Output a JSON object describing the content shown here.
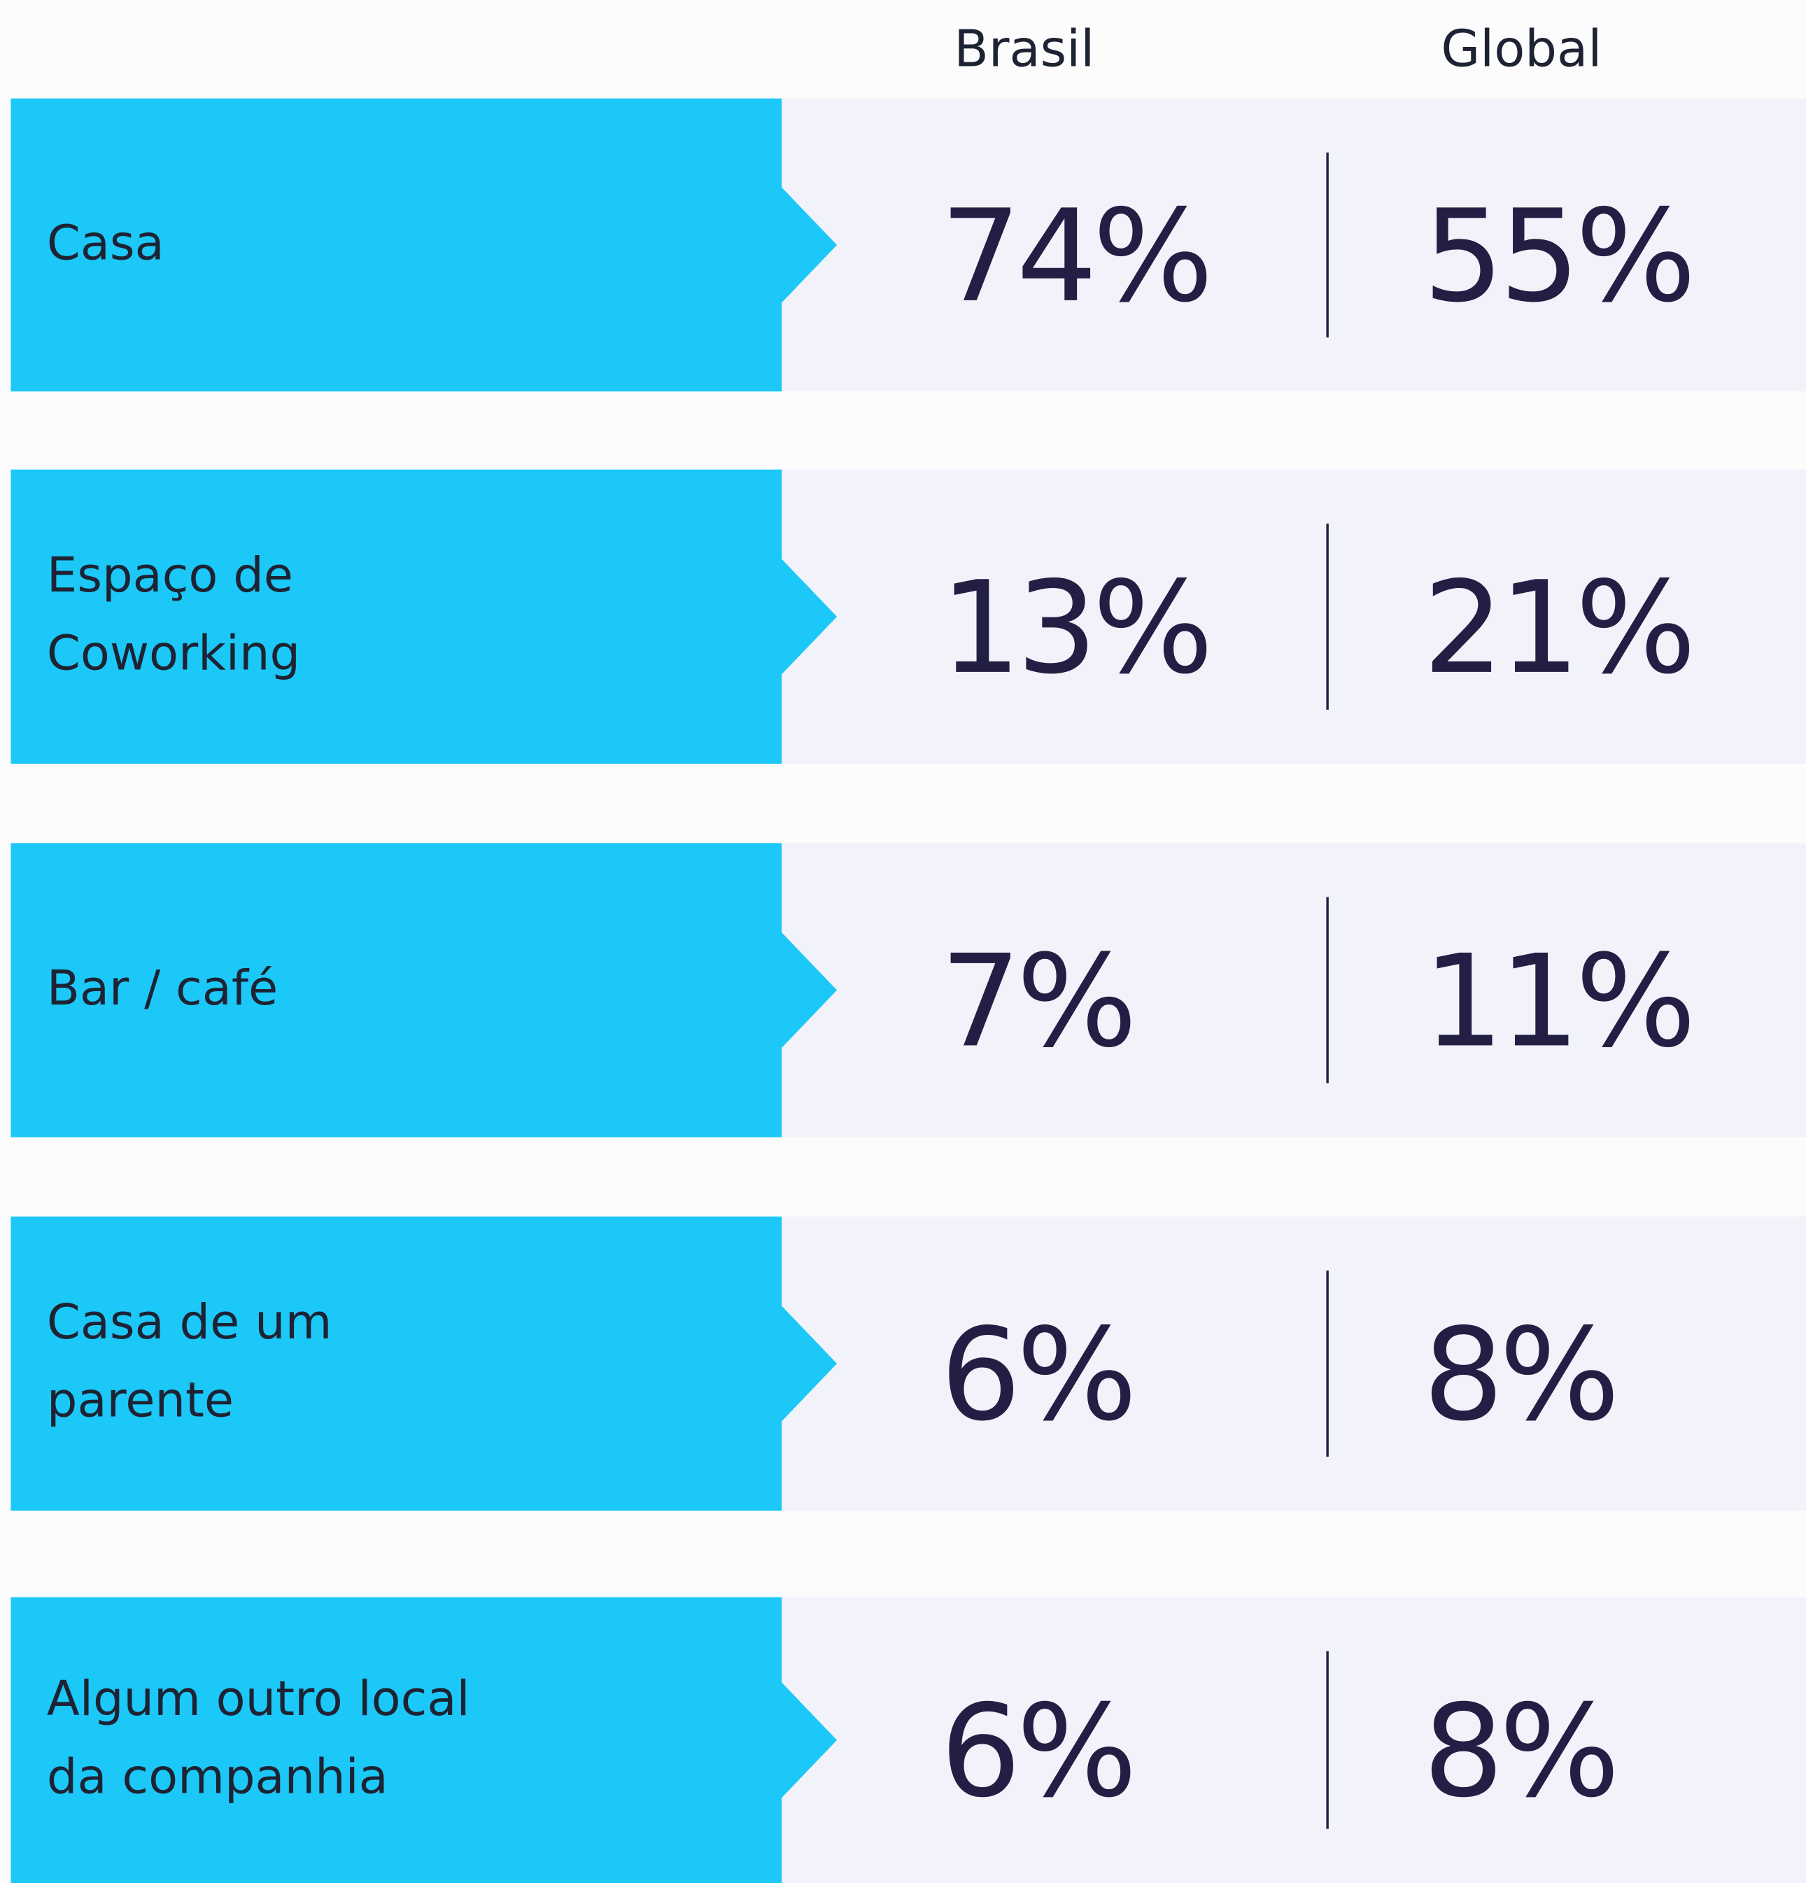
{
  "header": {
    "columns": [
      "Brasil",
      "Global"
    ]
  },
  "rows": [
    {
      "label": [
        "Casa"
      ],
      "values": [
        "74%",
        "55%"
      ]
    },
    {
      "label": [
        "Espaço de",
        "Coworking"
      ],
      "values": [
        "13%",
        "21%"
      ]
    },
    {
      "label": [
        "Bar / café"
      ],
      "values": [
        "7%",
        "11%"
      ]
    },
    {
      "label": [
        "Casa de um",
        "parente"
      ],
      "values": [
        "6%",
        "8%"
      ]
    },
    {
      "label": [
        "Algum outro local",
        "da companhia"
      ],
      "values": [
        "6%",
        "8%"
      ]
    }
  ]
}
